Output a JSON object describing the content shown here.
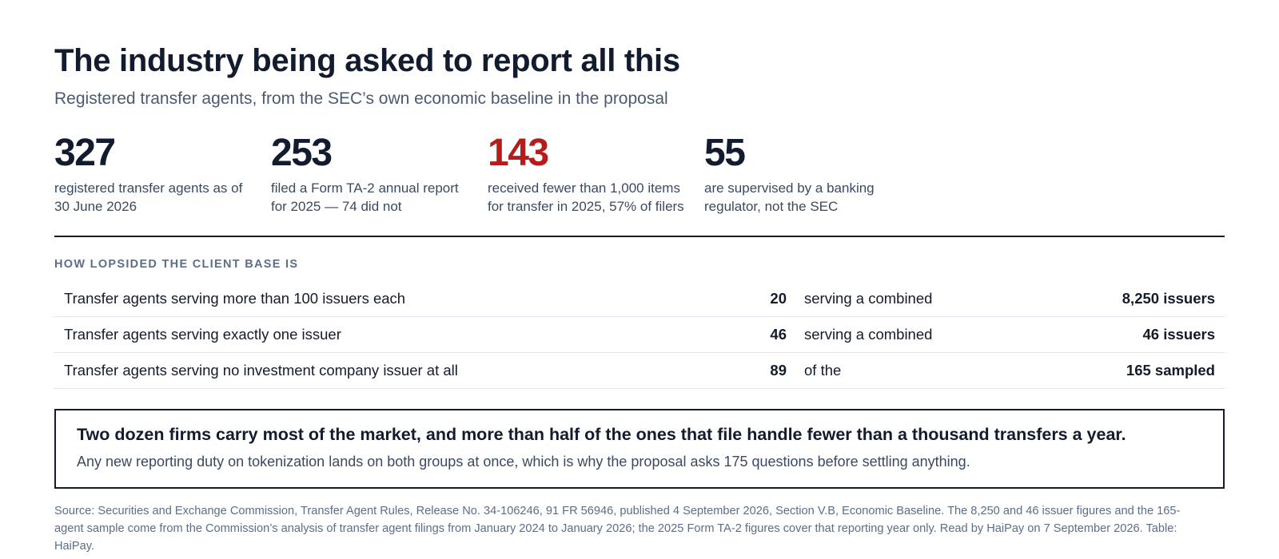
{
  "header": {
    "title": "The industry being asked to report all this",
    "subtitle": "Registered transfer agents, from the SEC’s own economic baseline in the proposal"
  },
  "stats": [
    {
      "value": "327",
      "desc_line1": "registered transfer agents as of",
      "desc_line2": "30 June 2026",
      "color": "#131b2e"
    },
    {
      "value": "253",
      "desc_line1": "filed a Form TA-2 annual report",
      "desc_line2": "for 2025 — 74 did not",
      "color": "#131b2e"
    },
    {
      "value": "143",
      "desc_line1": "received fewer than 1,000 items",
      "desc_line2": "for transfer in 2025, 57% of filers",
      "color": "#b51c1c"
    },
    {
      "value": "55",
      "desc_line1": "are supervised by a banking",
      "desc_line2": "regulator, not the SEC",
      "color": "#131b2e"
    }
  ],
  "client_base": {
    "heading": "HOW LOPSIDED THE CLIENT BASE IS",
    "rows": [
      {
        "label": "Transfer agents serving more than 100 issuers each",
        "count": "20",
        "connector": "serving a combined",
        "total": "8,250 issuers"
      },
      {
        "label": "Transfer agents serving exactly one issuer",
        "count": "46",
        "connector": "serving a combined",
        "total": "46 issuers"
      },
      {
        "label": "Transfer agents serving no investment company issuer at all",
        "count": "89",
        "connector": "of the",
        "total": "165 sampled"
      }
    ]
  },
  "callout": {
    "headline": "Two dozen firms carry most of the market, and more than half of the ones that file handle fewer than a thousand transfers a year.",
    "body": "Any new reporting duty on tokenization lands on both groups at once, which is why the proposal asks 175 questions before settling anything."
  },
  "source": {
    "line1": "Source: Securities and Exchange Commission, Transfer Agent Rules, Release No. 34-106246, 91 FR 56946, published 4 September 2026, Section V.B, Economic Baseline. The 8,250 and 46 issuer figures and the 165-",
    "line2": "agent sample come from the Commission’s analysis of transfer agent filings from January 2024 to January 2026; the 2025 Form TA-2 figures cover that reporting year only. Read by HaiPay on 7 September 2026. Table:",
    "line3": "HaiPay."
  },
  "colors": {
    "accent_red": "#b51c1c",
    "ink": "#131b2e",
    "muted": "#5c6e88"
  }
}
